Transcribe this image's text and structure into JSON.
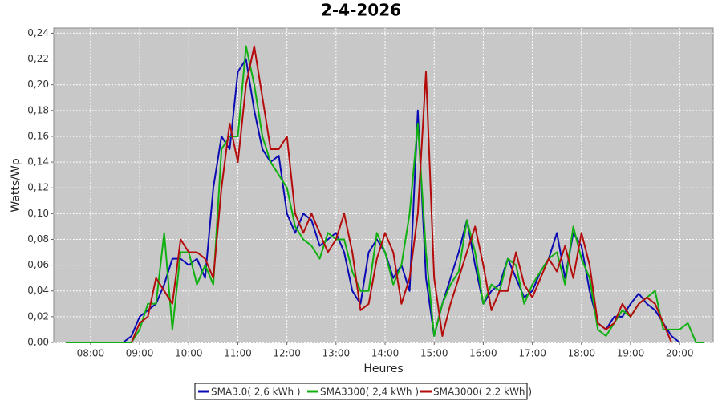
{
  "chart_data": {
    "type": "line",
    "title": "2-4-2026",
    "x_label": "Heures",
    "y_label": "Watts/Wp",
    "x": [
      450,
      460,
      470,
      480,
      490,
      500,
      510,
      520,
      530,
      540,
      550,
      560,
      570,
      580,
      590,
      600,
      610,
      620,
      630,
      640,
      650,
      660,
      670,
      680,
      690,
      700,
      710,
      720,
      730,
      740,
      750,
      760,
      770,
      780,
      790,
      800,
      810,
      820,
      830,
      840,
      850,
      860,
      870,
      880,
      890,
      900,
      910,
      920,
      930,
      940,
      950,
      960,
      970,
      980,
      990,
      1000,
      1010,
      1020,
      1030,
      1040,
      1050,
      1060,
      1070,
      1080,
      1090,
      1100,
      1110,
      1120,
      1130,
      1140,
      1150,
      1160,
      1170,
      1180,
      1190,
      1200,
      1210,
      1220,
      1230
    ],
    "series": [
      {
        "name": "SMA3.0( 2,6 kWh )",
        "color": "#0b0bb4",
        "values": [
          0,
          0,
          0,
          0,
          0,
          0,
          0,
          0,
          0.005,
          0.02,
          0.025,
          0.03,
          0.045,
          0.065,
          0.065,
          0.06,
          0.065,
          0.05,
          0.12,
          0.16,
          0.15,
          0.21,
          0.22,
          0.18,
          0.15,
          0.14,
          0.145,
          0.1,
          0.085,
          0.1,
          0.095,
          0.075,
          0.08,
          0.085,
          0.07,
          0.04,
          0.03,
          0.07,
          0.08,
          0.07,
          0.05,
          0.06,
          0.04,
          0.18,
          0.05,
          0.005,
          0.03,
          0.05,
          0.07,
          0.095,
          0.06,
          0.03,
          0.04,
          0.045,
          0.065,
          0.05,
          0.035,
          0.04,
          0.055,
          0.065,
          0.085,
          0.05,
          0.085,
          0.075,
          0.04,
          0.015,
          0.01,
          0.02,
          0.02,
          0.03,
          0.038,
          0.03,
          0.025,
          0.015,
          0.005,
          0,
          null,
          null,
          null
        ]
      },
      {
        "name": "SMA3300( 2,4 kWh )",
        "color": "#10b010",
        "values": [
          0,
          0,
          0,
          0,
          0,
          0,
          0,
          0,
          0,
          0.01,
          0.03,
          0.03,
          0.085,
          0.01,
          0.07,
          0.07,
          0.045,
          0.06,
          0.045,
          0.15,
          0.16,
          0.16,
          0.23,
          0.2,
          0.16,
          0.14,
          0.13,
          0.12,
          0.09,
          0.08,
          0.075,
          0.065,
          0.085,
          0.08,
          0.08,
          0.055,
          0.04,
          0.04,
          0.085,
          0.07,
          0.045,
          0.06,
          0.1,
          0.17,
          0.07,
          0.005,
          0.03,
          0.045,
          0.055,
          0.095,
          0.07,
          0.03,
          0.045,
          0.04,
          0.065,
          0.06,
          0.03,
          0.045,
          0.055,
          0.065,
          0.07,
          0.045,
          0.09,
          0.065,
          0.05,
          0.01,
          0.005,
          0.015,
          0.025,
          0.02,
          0.03,
          0.035,
          0.04,
          0.01,
          0.01,
          0.01,
          0.015,
          0,
          0
        ]
      },
      {
        "name": "SMA3000( 2,2 kWh )",
        "color": "#b40b0b",
        "values": [
          null,
          null,
          null,
          null,
          null,
          null,
          null,
          null,
          0,
          0.015,
          0.02,
          0.05,
          0.04,
          0.03,
          0.08,
          0.07,
          0.07,
          0.065,
          0.05,
          0.12,
          0.17,
          0.14,
          0.2,
          0.23,
          0.19,
          0.15,
          0.15,
          0.16,
          0.1,
          0.085,
          0.1,
          0.085,
          0.07,
          0.08,
          0.1,
          0.07,
          0.025,
          0.03,
          0.065,
          0.085,
          0.07,
          0.03,
          0.05,
          0.1,
          0.21,
          0.05,
          0.005,
          0.03,
          0.05,
          0.07,
          0.09,
          0.06,
          0.025,
          0.04,
          0.04,
          0.07,
          0.045,
          0.035,
          0.05,
          0.065,
          0.055,
          0.075,
          0.05,
          0.085,
          0.06,
          0.015,
          0.01,
          0.015,
          0.03,
          0.02,
          0.03,
          0.035,
          0.03,
          0.015,
          0,
          null,
          null,
          null,
          null
        ]
      }
    ],
    "xlim": [
      435,
      1241
    ],
    "xticks": [
      {
        "value": 480,
        "label": "08:00"
      },
      {
        "value": 540,
        "label": "09:00"
      },
      {
        "value": 600,
        "label": "10:00"
      },
      {
        "value": 660,
        "label": "11:00"
      },
      {
        "value": 720,
        "label": "12:00"
      },
      {
        "value": 780,
        "label": "13:00"
      },
      {
        "value": 840,
        "label": "14:00"
      },
      {
        "value": 900,
        "label": "15:00"
      },
      {
        "value": 960,
        "label": "16:00"
      },
      {
        "value": 1020,
        "label": "17:00"
      },
      {
        "value": 1080,
        "label": "18:00"
      },
      {
        "value": 1140,
        "label": "19:00"
      },
      {
        "value": 1200,
        "label": "20:00"
      }
    ],
    "ylim": [
      0,
      0.244
    ],
    "yticks": [
      {
        "value": 0,
        "label": "0,00"
      },
      {
        "value": 0.02,
        "label": "0,02"
      },
      {
        "value": 0.04,
        "label": "0,04"
      },
      {
        "value": 0.06,
        "label": "0,06"
      },
      {
        "value": 0.08,
        "label": "0,08"
      },
      {
        "value": 0.1,
        "label": "0,10"
      },
      {
        "value": 0.12,
        "label": "0,12"
      },
      {
        "value": 0.14,
        "label": "0,14"
      },
      {
        "value": 0.16,
        "label": "0,16"
      },
      {
        "value": 0.18,
        "label": "0,18"
      },
      {
        "value": 0.2,
        "label": "0,20"
      },
      {
        "value": 0.22,
        "label": "0,22"
      },
      {
        "value": 0.24,
        "label": "0,24"
      }
    ],
    "grid": true,
    "legend": "bottom"
  }
}
